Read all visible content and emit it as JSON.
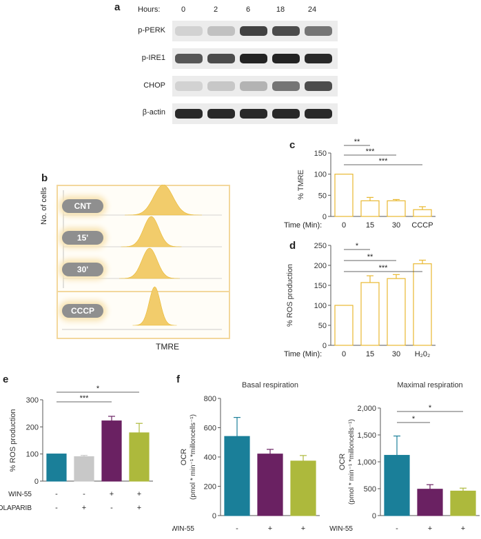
{
  "panels": {
    "a": "a",
    "b": "b",
    "c": "c",
    "d": "d",
    "e": "e",
    "f": "f"
  },
  "western_blot": {
    "hours_label": "Hours:",
    "hours": [
      "0",
      "2",
      "6",
      "18",
      "24"
    ],
    "rows": [
      {
        "label": "p-PERK",
        "intensity": [
          0.1,
          0.18,
          0.8,
          0.75,
          0.55
        ]
      },
      {
        "label": "p-IRE1",
        "intensity": [
          0.7,
          0.75,
          0.95,
          0.95,
          0.92
        ]
      },
      {
        "label": "CHOP",
        "intensity": [
          0.1,
          0.15,
          0.25,
          0.55,
          0.75
        ]
      },
      {
        "label": "β-actin",
        "intensity": [
          0.92,
          0.92,
          0.92,
          0.92,
          0.92
        ]
      }
    ]
  },
  "flow": {
    "ylabel": "No. of cells",
    "xlabel": "TMRE",
    "samples": [
      "CNT",
      "15'",
      "30'",
      "CCCP"
    ],
    "peak_positions": [
      0.62,
      0.55,
      0.54,
      0.57
    ]
  },
  "chart_data": [
    {
      "type": "bar",
      "panel": "c",
      "categories": [
        "0",
        "15",
        "30",
        "CCCP"
      ],
      "values": [
        100,
        37,
        37,
        16
      ],
      "errors": [
        0,
        8,
        3,
        7
      ],
      "ylabel": "% TMRE",
      "xlabel": "Time (Min):",
      "ylim": [
        0,
        150
      ],
      "yticks": [
        0,
        50,
        100,
        150
      ],
      "color": "#e8b830",
      "significance": [
        {
          "from": 0,
          "to": 1,
          "label": "**"
        },
        {
          "from": 0,
          "to": 2,
          "label": "***"
        },
        {
          "from": 0,
          "to": 3,
          "label": "***"
        }
      ]
    },
    {
      "type": "bar",
      "panel": "d",
      "categories": [
        "0",
        "15",
        "30",
        "H₂0₂"
      ],
      "values": [
        100,
        157,
        167,
        204
      ],
      "errors": [
        0,
        17,
        10,
        9
      ],
      "ylabel": "% ROS production",
      "xlabel": "Time (Min):",
      "ylim": [
        0,
        250
      ],
      "yticks": [
        0,
        50,
        100,
        150,
        200,
        250
      ],
      "color": "#e8b830",
      "significance": [
        {
          "from": 0,
          "to": 1,
          "label": "*"
        },
        {
          "from": 0,
          "to": 2,
          "label": "**"
        },
        {
          "from": 0,
          "to": 3,
          "label": "***"
        }
      ]
    },
    {
      "type": "bar",
      "panel": "e",
      "categories": [
        "1",
        "2",
        "3",
        "4"
      ],
      "values": [
        100,
        90,
        222,
        178
      ],
      "errors": [
        0,
        5,
        17,
        35
      ],
      "colors": [
        "#1a7f99",
        "#c8c8c8",
        "#6a2162",
        "#adb93c"
      ],
      "ylabel": "% ROS production",
      "ylim": [
        0,
        300
      ],
      "yticks": [
        0,
        100,
        200,
        300
      ],
      "row_labels": [
        "WIN-55",
        "OLAPARIB"
      ],
      "row_values": [
        [
          "-",
          "-",
          "+",
          "+"
        ],
        [
          "-",
          "+",
          "-",
          "+"
        ]
      ],
      "significance": [
        {
          "from": 0,
          "to": 2,
          "label": "***"
        },
        {
          "from": 0,
          "to": 3,
          "label": "*"
        }
      ]
    },
    {
      "type": "bar",
      "panel": "f1",
      "title": "Basal respiration",
      "categories": [
        "1",
        "2",
        "3"
      ],
      "values": [
        540,
        420,
        372
      ],
      "errors": [
        130,
        32,
        38
      ],
      "colors": [
        "#1a7f99",
        "#6a2162",
        "#adb93c"
      ],
      "ylabel": "OCR",
      "ylabel2": "(pmol * min⁻¹ *milloncells⁻¹)",
      "ylim": [
        0,
        800
      ],
      "yticks": [
        0,
        200,
        400,
        600,
        800
      ],
      "row_labels": [
        "WIN-55",
        "OLAPARIB"
      ],
      "row_values": [
        [
          "-",
          "+",
          "+"
        ],
        [
          "-",
          "-",
          "+"
        ]
      ],
      "significance": []
    },
    {
      "type": "bar",
      "panel": "f2",
      "title": "Maximal respiration",
      "categories": [
        "1",
        "2",
        "3"
      ],
      "values": [
        1120,
        490,
        455
      ],
      "errors": [
        360,
        85,
        55
      ],
      "colors": [
        "#1a7f99",
        "#6a2162",
        "#adb93c"
      ],
      "ylabel": "OCR",
      "ylabel2": "(pmol * min⁻¹ *milloncells⁻¹)",
      "ylim": [
        0,
        2000
      ],
      "yticks": [
        0,
        500,
        1000,
        1500,
        2000
      ],
      "ytick_labels": [
        "0",
        "500",
        "1,000",
        "1,500",
        "2,000"
      ],
      "row_labels": [
        "WIN-55",
        "OLAPARIB"
      ],
      "row_values": [
        [
          "-",
          "+",
          "+"
        ],
        [
          "-",
          "-",
          "+"
        ]
      ],
      "significance": [
        {
          "from": 0,
          "to": 1,
          "label": "*"
        },
        {
          "from": 0,
          "to": 2,
          "label": "*"
        }
      ]
    }
  ]
}
